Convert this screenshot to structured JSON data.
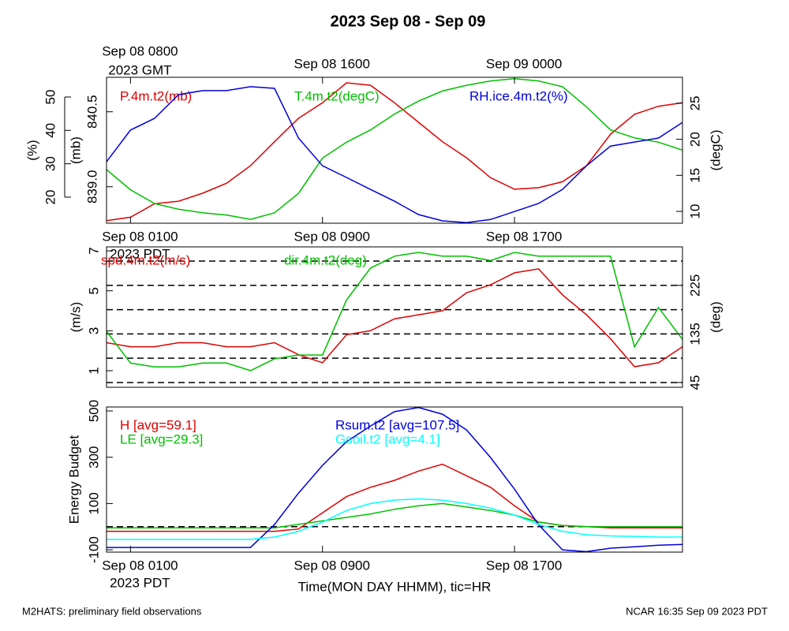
{
  "title": "2023 Sep 08 - Sep 09",
  "footer_left": "M2HATS: preliminary field observations",
  "footer_right": "NCAR 16:35 Sep 09 2023 PDT",
  "chart_data": [
    {
      "type": "line",
      "x": [
        0,
        1,
        2,
        3,
        4,
        5,
        6,
        7,
        8,
        9,
        10,
        11,
        12,
        13,
        14,
        15,
        16,
        17,
        18,
        19,
        20,
        21,
        22,
        23,
        24
      ],
      "xlim": [
        0,
        24
      ],
      "top_xticks": [
        {
          "value": 1,
          "label": "Sep 08 0800"
        },
        {
          "value": 9,
          "label": "Sep 08 1600"
        },
        {
          "value": 17,
          "label": "Sep 09 0000"
        }
      ],
      "top_xtick_sublabel": "2023 GMT",
      "xticks": [
        {
          "value": 1,
          "label": "Sep 08 0100"
        },
        {
          "value": 9,
          "label": "Sep 08 0900"
        },
        {
          "value": 17,
          "label": "Sep 08 1700"
        }
      ],
      "xtick_sublabel": "2023 PDT",
      "axes": [
        {
          "label": "(%)",
          "lim": [
            12.2,
            55.9
          ],
          "ticks": [
            20,
            30,
            40,
            50
          ]
        },
        {
          "label": "(mb)",
          "lim": [
            838.27,
            841.19
          ],
          "ticks": [
            {
              "value": 839,
              "label": "839.0"
            },
            {
              "value": 840.5,
              "label": "840.5"
            }
          ]
        },
        {
          "label": "(degC)",
          "lim": [
            8.36,
            28.6
          ],
          "ticks": [
            10,
            15,
            20,
            25
          ]
        }
      ],
      "series": [
        {
          "name": "P.4m.t2(mb)",
          "color": "#e00000",
          "axis": 1,
          "values": [
            838.32,
            838.39,
            838.66,
            838.71,
            838.87,
            839.07,
            839.42,
            839.9,
            840.37,
            840.68,
            841.08,
            841.03,
            840.68,
            840.29,
            839.9,
            839.58,
            839.18,
            838.95,
            838.98,
            839.1,
            839.42,
            840.05,
            840.45,
            840.61,
            840.68
          ]
        },
        {
          "name": "T.4m.t2(degC)",
          "color": "#00c000",
          "axis": 2,
          "values": [
            15.8,
            13.0,
            11.1,
            10.3,
            9.8,
            9.5,
            8.9,
            9.8,
            12.5,
            17.4,
            19.6,
            21.3,
            23.5,
            25.3,
            26.7,
            27.5,
            28.1,
            28.4,
            28.1,
            27.3,
            24.5,
            21.3,
            20.2,
            19.6,
            18.5
          ]
        },
        {
          "name": "RH.ice.4m.t2(%)",
          "color": "#0000e0",
          "axis": 0,
          "values": [
            30.6,
            40.1,
            43.6,
            50.7,
            51.9,
            51.9,
            53.1,
            52.6,
            37.7,
            29.4,
            25.9,
            22.3,
            18.8,
            14.8,
            12.9,
            12.4,
            13.3,
            15.7,
            18.1,
            22.3,
            29.4,
            35.3,
            36.5,
            37.7,
            42.4
          ]
        }
      ]
    },
    {
      "type": "line",
      "x": [
        0,
        1,
        2,
        3,
        4,
        5,
        6,
        7,
        8,
        9,
        10,
        11,
        12,
        13,
        14,
        15,
        16,
        17,
        18,
        19,
        20,
        21,
        22,
        23,
        24
      ],
      "xlim": [
        0,
        24
      ],
      "axes": [
        {
          "label": "(m/s)",
          "lim": [
            0.17,
            7.2
          ],
          "ticks": [
            1,
            3,
            5,
            7
          ]
        },
        {
          "label": "(deg)",
          "lim": [
            36.2,
            296.3
          ],
          "ticks": [
            45,
            135,
            225
          ],
          "grid": [
            45,
            90,
            135,
            180,
            225,
            270
          ]
        }
      ],
      "series": [
        {
          "name": "spd.4m.t2(m/s)",
          "color": "#e00000",
          "axis": 0,
          "values": [
            2.4,
            2.2,
            2.2,
            2.4,
            2.4,
            2.2,
            2.2,
            2.4,
            1.8,
            1.4,
            2.8,
            3.0,
            3.6,
            3.8,
            4.0,
            4.9,
            5.3,
            5.9,
            6.1,
            4.8,
            3.8,
            2.6,
            1.2,
            1.4,
            2.2
          ]
        },
        {
          "name": "dir.4m.t2(deg)",
          "color": "#00c000",
          "axis": 1,
          "values": [
            140,
            81,
            74,
            74,
            81,
            81,
            67,
            89,
            96,
            96,
            198,
            257,
            279,
            286,
            279,
            279,
            271,
            286,
            279,
            279,
            279,
            279,
            111,
            184,
            125
          ]
        }
      ]
    },
    {
      "type": "line",
      "x": [
        0,
        1,
        2,
        3,
        4,
        5,
        6,
        7,
        8,
        9,
        10,
        11,
        12,
        13,
        14,
        15,
        16,
        17,
        18,
        19,
        20,
        21,
        22,
        23,
        24
      ],
      "xlim": [
        0,
        24
      ],
      "xticks": [
        {
          "value": 1,
          "label": "Sep 08 0100"
        },
        {
          "value": 9,
          "label": "Sep 08 0900"
        },
        {
          "value": 17,
          "label": "Sep 08 1700"
        }
      ],
      "xtick_sublabel": "2023 PDT",
      "xlabel": "Time(MON DAY HHMM), tic=HR",
      "axes": [
        {
          "label": "Energy Budget",
          "lim": [
            -110,
            517
          ],
          "ticks": [
            -100,
            100,
            300,
            500
          ],
          "grid": [
            0
          ]
        }
      ],
      "series": [
        {
          "name": "H [avg=59.1]",
          "color": "#e00000",
          "axis": 0,
          "values": [
            -20,
            -20,
            -20,
            -20,
            -20,
            -20,
            -20,
            -20,
            -10,
            60,
            130,
            170,
            200,
            240,
            270,
            220,
            170,
            90,
            20,
            5,
            0,
            -5,
            -5,
            -5,
            -5
          ]
        },
        {
          "name": "LE [avg=29.3]",
          "color": "#00c000",
          "axis": 0,
          "values": [
            -5,
            -5,
            -5,
            -5,
            -5,
            -5,
            -5,
            -5,
            10,
            25,
            40,
            55,
            75,
            90,
            100,
            85,
            70,
            50,
            20,
            5,
            0,
            0,
            0,
            0,
            0
          ]
        },
        {
          "name": "Rsum.t2 [avg=107.5]",
          "color": "#0000e0",
          "axis": 0,
          "values": [
            -90,
            -90,
            -90,
            -90,
            -90,
            -90,
            -90,
            9,
            145,
            265,
            367,
            435,
            497,
            515,
            486,
            418,
            299,
            162,
            9,
            -100,
            -108,
            -93,
            -87,
            -80,
            -77
          ]
        },
        {
          "name": "Gsoil.t2 [avg=4.1]",
          "color": "#00ffff",
          "axis": 0,
          "values": [
            -55,
            -55,
            -55,
            -55,
            -55,
            -55,
            -55,
            -45,
            -20,
            20,
            70,
            100,
            115,
            120,
            115,
            100,
            80,
            50,
            10,
            -20,
            -35,
            -40,
            -42,
            -45,
            -45
          ]
        }
      ]
    }
  ]
}
